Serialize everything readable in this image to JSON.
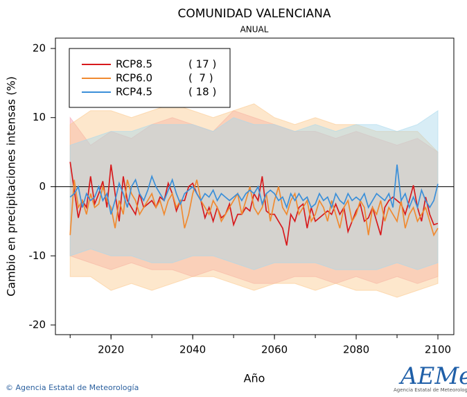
{
  "chart_data": {
    "type": "line",
    "title": "COMUNIDAD VALENCIANA",
    "subtitle": "ANUAL",
    "ylabel": "Cambio en precipitaciones intensas (%)",
    "xlabel": "Año",
    "footer": "© Agencia Estatal de Meteorología",
    "logo": "AEMet",
    "logo_caption": "Agencia Estatal de Meteorología",
    "xlim": [
      2006.4,
      2103.9
    ],
    "ylim": [
      -21.4,
      21.5
    ],
    "xticks": [
      2020,
      2040,
      2060,
      2080,
      2100
    ],
    "yticks": [
      -20,
      -10,
      0,
      10,
      20
    ],
    "hline": 0,
    "legend": "top-left",
    "x": [
      2010,
      2011,
      2012,
      2013,
      2014,
      2015,
      2016,
      2017,
      2018,
      2019,
      2020,
      2021,
      2022,
      2023,
      2024,
      2025,
      2026,
      2027,
      2028,
      2029,
      2030,
      2031,
      2032,
      2033,
      2034,
      2035,
      2036,
      2037,
      2038,
      2039,
      2040,
      2041,
      2042,
      2043,
      2044,
      2045,
      2046,
      2047,
      2048,
      2049,
      2050,
      2051,
      2052,
      2053,
      2054,
      2055,
      2056,
      2057,
      2058,
      2059,
      2060,
      2061,
      2062,
      2063,
      2064,
      2065,
      2066,
      2067,
      2068,
      2069,
      2070,
      2071,
      2072,
      2073,
      2074,
      2075,
      2076,
      2077,
      2078,
      2079,
      2080,
      2081,
      2082,
      2083,
      2084,
      2085,
      2086,
      2087,
      2088,
      2089,
      2090,
      2091,
      2092,
      2093,
      2094,
      2095,
      2096,
      2097,
      2098,
      2099,
      2100
    ],
    "band_x": [
      2010,
      2015,
      2020,
      2025,
      2030,
      2035,
      2040,
      2045,
      2050,
      2055,
      2060,
      2065,
      2070,
      2075,
      2080,
      2085,
      2090,
      2095,
      2100
    ],
    "series": [
      {
        "name": "RCP8.5",
        "members": "( 17 )",
        "color": "#d7191c",
        "band_color": "#f4a3b4",
        "values": [
          3.6,
          -0.5,
          -4.5,
          -2,
          -3,
          1.5,
          -2.5,
          -1,
          0.8,
          -3,
          3.2,
          -1,
          -5,
          1.5,
          -2,
          -3,
          -4,
          -1,
          -3,
          -2.5,
          -2,
          -3,
          -1.5,
          -2,
          0.5,
          -1,
          -3.5,
          -2,
          -2,
          0,
          0.5,
          -1,
          -2,
          -4.5,
          -3,
          -5,
          -3,
          -4.5,
          -4,
          -2.5,
          -5.5,
          -4,
          -4,
          -3,
          -3.5,
          -1,
          -2,
          1.5,
          -3.5,
          -4,
          -4,
          -5,
          -6,
          -8.5,
          -4,
          -5,
          -3,
          -2.5,
          -6,
          -3,
          -5,
          -4.5,
          -4,
          -3.5,
          -4,
          -2.5,
          -4,
          -3,
          -6.5,
          -5,
          -3.5,
          -2.5,
          -5,
          -4.5,
          -3,
          -5,
          -7,
          -3,
          -2,
          -1.5,
          -2,
          -2.5,
          -4,
          -2,
          0.2,
          -3,
          -5,
          -1.5,
          -4,
          -5.5,
          -5.3
        ],
        "band_upper": [
          10,
          6,
          8,
          7,
          9,
          10,
          9,
          8,
          11,
          10,
          9,
          8,
          8,
          7,
          8,
          7,
          6,
          7,
          5
        ],
        "band_lower": [
          -10,
          -11,
          -12,
          -11,
          -12,
          -12,
          -13,
          -12,
          -13,
          -14,
          -14,
          -13,
          -13,
          -14,
          -13,
          -14,
          -13,
          -14,
          -13
        ]
      },
      {
        "name": "RCP6.0",
        "members": "(  7 )",
        "color": "#f08a30",
        "band_color": "#fbc98f",
        "values": [
          -7,
          1,
          -3,
          -2,
          -4,
          -1,
          -3,
          -2.5,
          0,
          -2,
          -3,
          -6,
          -2,
          -4,
          1,
          -1,
          -2,
          -4,
          -3,
          -2,
          -1,
          -3,
          -2,
          -4,
          -2,
          -1,
          -3,
          -2,
          -6,
          -4,
          -1,
          1,
          -2,
          -3,
          -4,
          -2,
          -3,
          -5,
          -4,
          -3,
          -2,
          -1,
          -4,
          -2,
          0,
          -3,
          -4,
          -3,
          -1,
          -5,
          -2,
          0,
          -3,
          -4,
          -2,
          -1,
          -4,
          -3,
          -2,
          -5,
          -4,
          -2,
          -3,
          -5,
          -2,
          -4,
          -6,
          -3,
          -2,
          -5,
          -4,
          -2,
          -3,
          -7,
          -3,
          -4,
          -2,
          -5,
          -3,
          -4,
          -5,
          -2,
          -6,
          -4,
          -3,
          -5,
          -4,
          -3,
          -5,
          -7,
          -6
        ],
        "band_upper": [
          9,
          11,
          11,
          10,
          11,
          12,
          11,
          10,
          11,
          12,
          10,
          9,
          10,
          9,
          9,
          8,
          8,
          8,
          5
        ],
        "band_lower": [
          -13,
          -13,
          -15,
          -14,
          -15,
          -14,
          -13,
          -13,
          -14,
          -15,
          -14,
          -14,
          -15,
          -14,
          -15,
          -15,
          -16,
          -15,
          -14
        ]
      },
      {
        "name": "RCP4.5",
        "members": "( 18 )",
        "color": "#3a8fd9",
        "band_color": "#a9d8ec",
        "values": [
          -1.5,
          -1,
          0,
          -3,
          -1,
          -2,
          -1.5,
          0,
          -2,
          -1,
          -4,
          -2,
          0.5,
          -1,
          -3,
          0,
          1,
          -1,
          -2,
          -0.5,
          1.5,
          0,
          -1,
          -2,
          -0.5,
          1,
          -1,
          -2.5,
          -1,
          -0.5,
          0,
          -1,
          -2,
          -1,
          -1.5,
          -0.5,
          -2,
          -1,
          -1.5,
          -2,
          -1.5,
          -1,
          -2,
          -1,
          -0.5,
          -1,
          0,
          -2.5,
          -1,
          -0.5,
          -1,
          -2,
          -1.5,
          -3,
          -1,
          -2,
          -1,
          -2,
          -1.5,
          -3,
          -2.5,
          -1,
          -2,
          -1.5,
          -3,
          -1,
          -2,
          -2.5,
          -1,
          -2,
          -1.5,
          -2,
          -1,
          -3,
          -2,
          -1,
          -1.5,
          -2,
          -1,
          -3,
          3.2,
          -2,
          -1,
          -3,
          -1.5,
          -3,
          -0.5,
          -2,
          -3,
          -2,
          0.4
        ],
        "band_upper": [
          6,
          7,
          8,
          8,
          9,
          9,
          9,
          8,
          10,
          9,
          9,
          8,
          9,
          8,
          9,
          9,
          8,
          9,
          11
        ],
        "band_lower": [
          -10,
          -9,
          -10,
          -10,
          -11,
          -11,
          -10,
          -10,
          -11,
          -12,
          -11,
          -11,
          -11,
          -12,
          -12,
          -12,
          -11,
          -12,
          -11
        ]
      }
    ]
  }
}
